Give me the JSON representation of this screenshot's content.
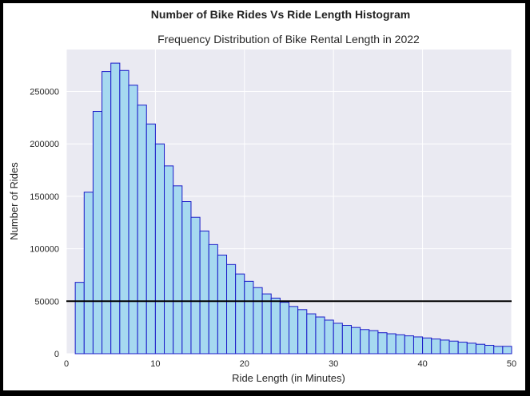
{
  "chart_data": {
    "type": "bar",
    "suptitle": "Number of Bike Rides Vs Ride Length Histogram",
    "title": "Frequency Distribution of Bike Rental Length in 2022",
    "xlabel": "Ride Length (in Minutes)",
    "ylabel": "Number of Rides",
    "xlim": [
      0,
      50
    ],
    "ylim": [
      0,
      290000
    ],
    "xticks": [
      "0",
      "10",
      "20",
      "30",
      "40",
      "50"
    ],
    "xtick_values": [
      0,
      10,
      20,
      30,
      40,
      50
    ],
    "yticks": [
      "0",
      "50000",
      "100000",
      "150000",
      "200000",
      "250000"
    ],
    "ytick_values": [
      0,
      50000,
      100000,
      150000,
      200000,
      250000
    ],
    "grid": true,
    "bin_edges": [
      1,
      2,
      3,
      4,
      5,
      6,
      7,
      8,
      9,
      10,
      11,
      12,
      13,
      14,
      15,
      16,
      17,
      18,
      19,
      20,
      21,
      22,
      23,
      24,
      25,
      26,
      27,
      28,
      29,
      30,
      31,
      32,
      33,
      34,
      35,
      36,
      37,
      38,
      39,
      40,
      41,
      42,
      43,
      44,
      45,
      46,
      47,
      48,
      49,
      50
    ],
    "values": [
      68000,
      154000,
      231000,
      269000,
      277000,
      270000,
      256000,
      237000,
      219000,
      200000,
      179000,
      160000,
      145000,
      130000,
      117000,
      104000,
      94000,
      85000,
      76000,
      69000,
      63000,
      57000,
      53000,
      49000,
      45000,
      42000,
      38000,
      35000,
      32000,
      29000,
      27000,
      25000,
      23000,
      22000,
      20000,
      19000,
      18000,
      17000,
      16000,
      15000,
      14000,
      13000,
      12000,
      11000,
      10000,
      9000,
      8000,
      7000,
      7000
    ],
    "reference_line": 50000,
    "colors": {
      "plot_background": "#EAEAF2",
      "grid": "#FFFFFF",
      "bar_fill": "#A6D9F0",
      "bar_edge": "#1A1AC8",
      "reference_line": "#000000"
    }
  }
}
